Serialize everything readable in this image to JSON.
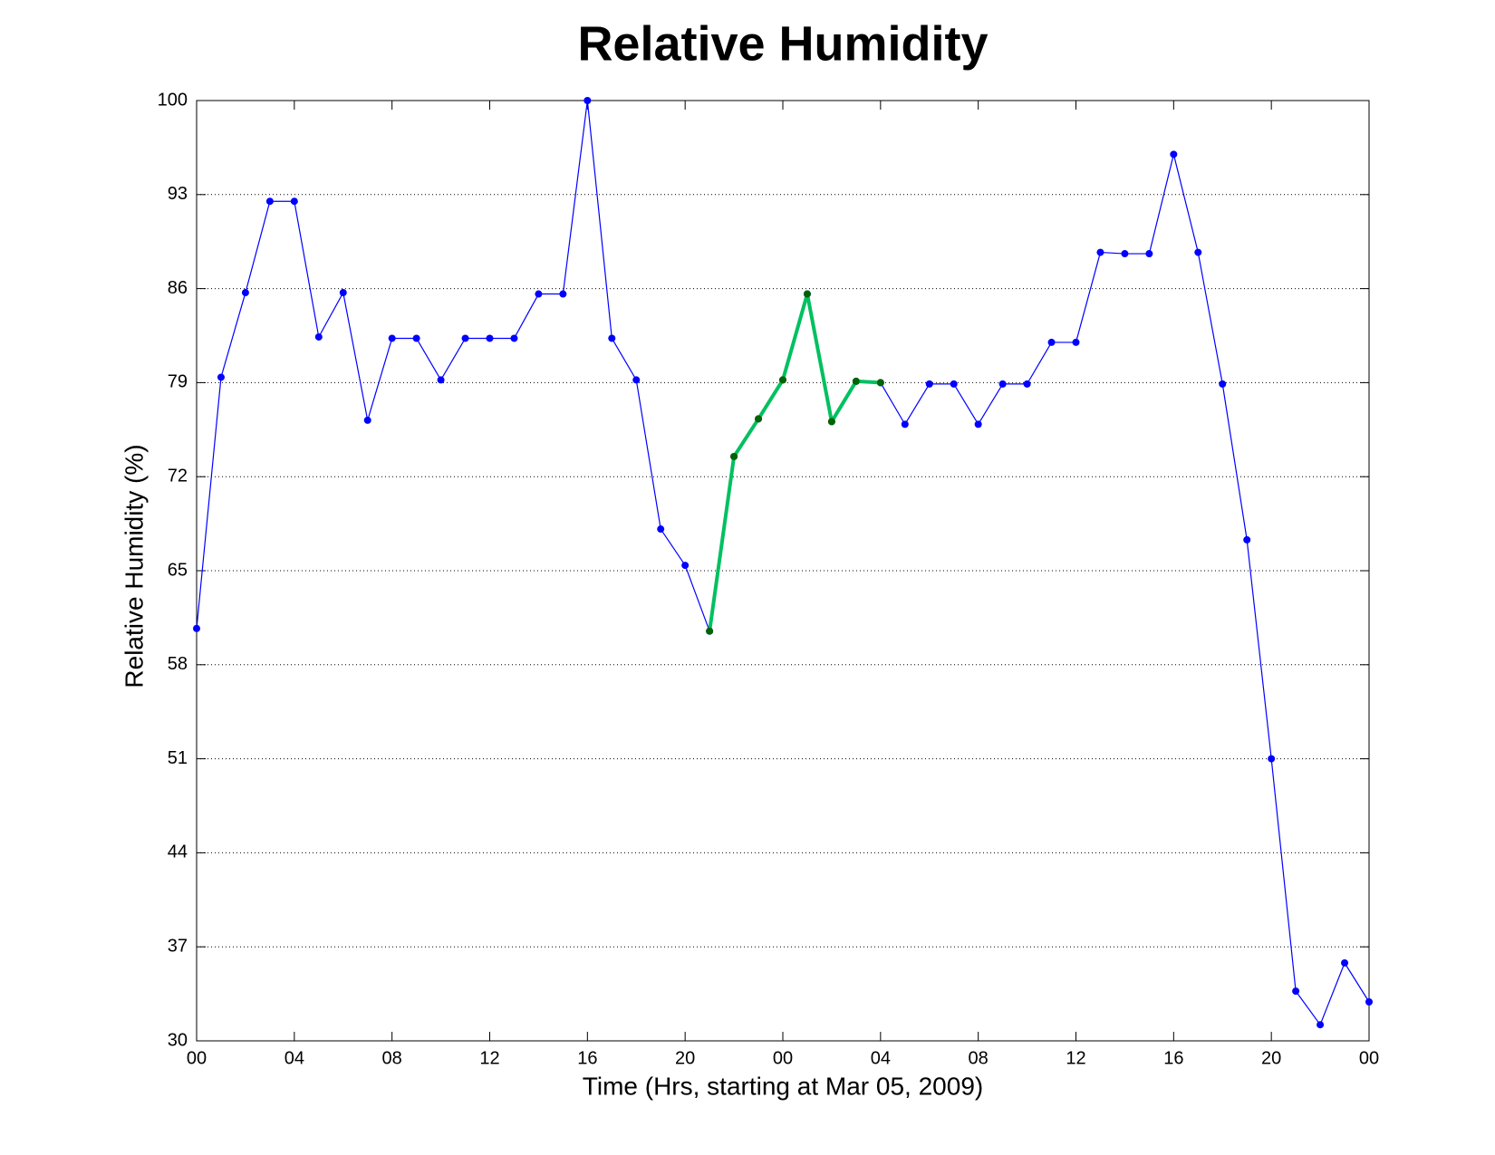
{
  "chart_data": {
    "type": "line",
    "title": "Relative Humidity",
    "xlabel": "Time (Hrs, starting at Mar 05, 2009)",
    "ylabel": "Relative Humidity (%)",
    "x": [
      0,
      1,
      2,
      3,
      4,
      5,
      6,
      7,
      8,
      9,
      10,
      11,
      12,
      13,
      14,
      15,
      16,
      17,
      18,
      19,
      20,
      21,
      22,
      23,
      24,
      25,
      26,
      27,
      28,
      29,
      30,
      31,
      32,
      33,
      34,
      35,
      36,
      37,
      38,
      39,
      40,
      41,
      42,
      43,
      44,
      45,
      46,
      47,
      48
    ],
    "series": [
      {
        "color": "#0000ff",
        "marker_color": "#0000ff",
        "line_width": 1.2,
        "values": [
          60.7,
          79.4,
          85.7,
          92.5,
          92.5,
          82.4,
          85.7,
          76.2,
          82.3,
          82.3,
          79.2,
          82.3,
          82.3,
          82.3,
          85.6,
          85.6,
          100,
          82.3,
          79.2,
          68.1,
          65.4,
          60.5,
          73.5,
          76.3,
          79.2,
          85.6,
          76.1,
          79.1,
          79.0,
          75.9,
          78.9,
          78.9,
          75.9,
          78.9,
          78.9,
          82.0,
          82.0,
          88.7,
          88.6,
          88.6,
          96.0,
          88.7,
          78.9,
          67.3,
          51.0,
          33.7,
          31.2,
          35.8,
          32.9
        ]
      },
      {
        "color": "#00c060",
        "marker_color": "#006400",
        "line_width": 4,
        "values": [
          null,
          null,
          null,
          null,
          null,
          null,
          null,
          null,
          null,
          null,
          null,
          null,
          null,
          null,
          null,
          null,
          null,
          null,
          null,
          null,
          null,
          60.5,
          73.5,
          76.3,
          79.2,
          85.6,
          76.1,
          79.1,
          79.0,
          null,
          null,
          null,
          null,
          null,
          null,
          null,
          null,
          null,
          null,
          null,
          null,
          null,
          null,
          null,
          null,
          null,
          null,
          null,
          null
        ]
      }
    ],
    "xlim": [
      0,
      48
    ],
    "xticks": [
      {
        "value": 0,
        "label": "00"
      },
      {
        "value": 4,
        "label": "04"
      },
      {
        "value": 8,
        "label": "08"
      },
      {
        "value": 12,
        "label": "12"
      },
      {
        "value": 16,
        "label": "16"
      },
      {
        "value": 20,
        "label": "20"
      },
      {
        "value": 24,
        "label": "00"
      },
      {
        "value": 28,
        "label": "04"
      },
      {
        "value": 32,
        "label": "08"
      },
      {
        "value": 36,
        "label": "12"
      },
      {
        "value": 40,
        "label": "16"
      },
      {
        "value": 44,
        "label": "20"
      },
      {
        "value": 48,
        "label": "00"
      }
    ],
    "ylim": [
      30,
      100
    ],
    "yticks": [
      30,
      37,
      44,
      51,
      58,
      65,
      72,
      79,
      86,
      93,
      100
    ],
    "ygrid": true,
    "xgrid": false
  }
}
